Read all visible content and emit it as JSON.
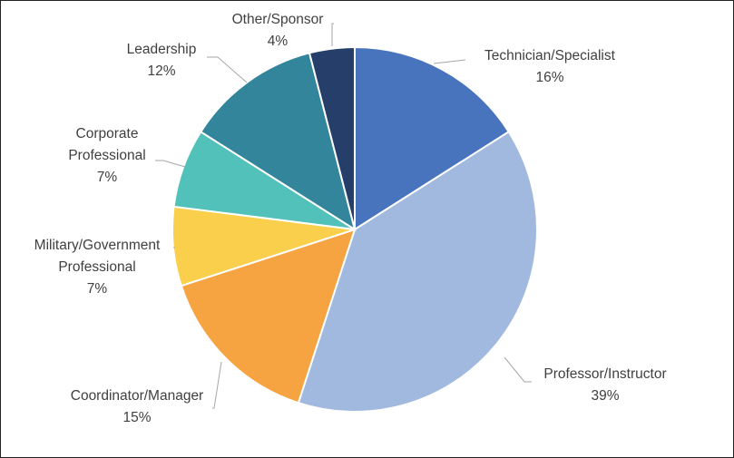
{
  "chart_data": {
    "type": "pie",
    "title": "",
    "start_angle_deg": 0,
    "direction": "clockwise",
    "slices": [
      {
        "name": "Technician/Specialist",
        "value": 16,
        "label": "16%",
        "color": "#4874BD"
      },
      {
        "name": "Professor/Instructor",
        "value": 39,
        "label": "39%",
        "color": "#A2B9DF"
      },
      {
        "name": "Coordinator/Manager",
        "value": 15,
        "label": "15%",
        "color": "#F5A441"
      },
      {
        "name": "Military/Government Professional",
        "value": 7,
        "label": "7%",
        "color": "#F9CF4B"
      },
      {
        "name": "Corporate Professional",
        "value": 7,
        "label": "7%",
        "color": "#52C1B9"
      },
      {
        "name": "Leadership",
        "value": 12,
        "label": "12%",
        "color": "#32859A"
      },
      {
        "name": "Other/Sponsor",
        "value": 4,
        "label": "4%",
        "color": "#253F6A"
      }
    ],
    "labels": [
      {
        "lines": [
          "Technician/Specialist",
          "16%"
        ]
      },
      {
        "lines": [
          "Professor/Instructor",
          "39%"
        ]
      },
      {
        "lines": [
          "Coordinator/Manager",
          "15%"
        ]
      },
      {
        "lines": [
          "Military/Government",
          "Professional",
          "7%"
        ]
      },
      {
        "lines": [
          "Corporate",
          "Professional",
          "7%"
        ]
      },
      {
        "lines": [
          "Leadership",
          "12%"
        ]
      },
      {
        "lines": [
          "Other/Sponsor",
          "4%"
        ]
      }
    ],
    "legend": "none (data labels outside slices)"
  }
}
